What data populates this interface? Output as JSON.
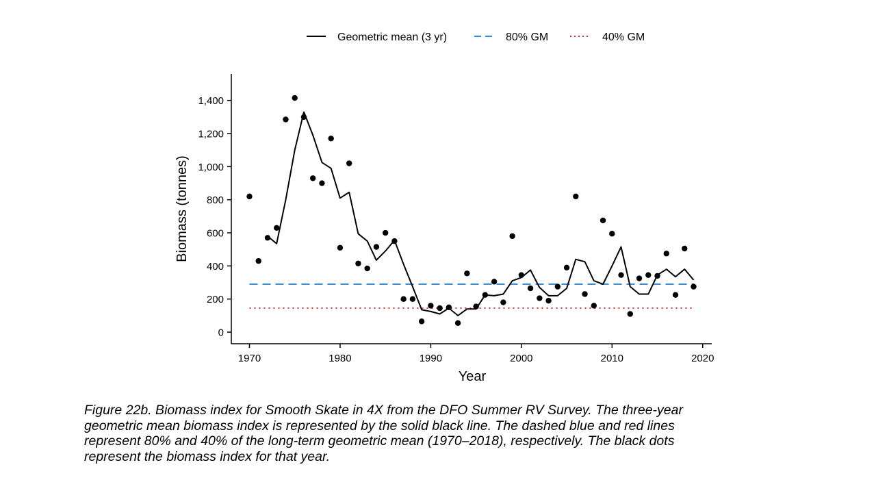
{
  "chart_data": {
    "type": "line",
    "xlabel": "Year",
    "ylabel": "Biomass (tonnes)",
    "xlim": [
      1968,
      2021
    ],
    "ylim": [
      -70,
      1560
    ],
    "x_ticks": [
      1970,
      1980,
      1990,
      2000,
      2010,
      2020
    ],
    "x_tick_labels": [
      "1970",
      "1980",
      "1990",
      "2000",
      "2010",
      "2020"
    ],
    "y_ticks": [
      0,
      200,
      400,
      600,
      800,
      1000,
      1200,
      1400
    ],
    "y_tick_labels": [
      "0",
      "200",
      "400",
      "600",
      "800",
      "1,000",
      "1,200",
      "1,400"
    ],
    "grid": false,
    "legend_position": "top",
    "legend": [
      {
        "label": "Geometric mean (3 yr)",
        "style": "solid",
        "color": "#000000"
      },
      {
        "label": "80% GM",
        "style": "dashed",
        "color": "#3b8fe0"
      },
      {
        "label": "40% GM",
        "style": "dotted",
        "color": "#d0343c"
      }
    ],
    "series": [
      {
        "name": "Geometric mean (3 yr)",
        "kind": "line",
        "color": "#000000",
        "x": [
          1972,
          1973,
          1974,
          1975,
          1976,
          1977,
          1978,
          1979,
          1980,
          1981,
          1982,
          1983,
          1984,
          1985,
          1986,
          1987,
          1988,
          1989,
          1990,
          1991,
          1992,
          1993,
          1994,
          1995,
          1996,
          1997,
          1998,
          1999,
          2000,
          2001,
          2002,
          2003,
          2004,
          2005,
          2006,
          2007,
          2008,
          2009,
          2010,
          2011,
          2012,
          2013,
          2014,
          2015,
          2016,
          2017,
          2018,
          2019
        ],
        "y": [
          580,
          535,
          800,
          1100,
          1330,
          1190,
          1025,
          990,
          810,
          845,
          595,
          550,
          435,
          490,
          555,
          410,
          275,
          135,
          125,
          110,
          145,
          100,
          140,
          140,
          225,
          220,
          230,
          310,
          330,
          375,
          270,
          220,
          220,
          265,
          440,
          425,
          310,
          290,
          400,
          515,
          275,
          230,
          230,
          345,
          380,
          335,
          380,
          315
        ]
      },
      {
        "name": "80% GM",
        "kind": "hline",
        "color": "#3b8fe0",
        "x": [
          1970,
          2019
        ],
        "y": 290
      },
      {
        "name": "40% GM",
        "kind": "hline",
        "color": "#d0343c",
        "x": [
          1970,
          2019
        ],
        "y": 145
      },
      {
        "kind": "points",
        "color": "#000000",
        "x": [
          1970,
          1971,
          1972,
          1973,
          1974,
          1975,
          1976,
          1977,
          1978,
          1979,
          1980,
          1981,
          1982,
          1983,
          1984,
          1985,
          1986,
          1987,
          1988,
          1989,
          1990,
          1991,
          1992,
          1993,
          1994,
          1995,
          1996,
          1997,
          1998,
          1999,
          2000,
          2001,
          2002,
          2003,
          2004,
          2005,
          2006,
          2007,
          2008,
          2009,
          2010,
          2011,
          2012,
          2013,
          2014,
          2015,
          2016,
          2017,
          2018,
          2019
        ],
        "y": [
          820,
          430,
          570,
          630,
          1285,
          1415,
          1300,
          930,
          900,
          1170,
          510,
          1020,
          415,
          385,
          515,
          600,
          550,
          200,
          200,
          65,
          160,
          145,
          150,
          55,
          355,
          155,
          225,
          305,
          180,
          580,
          345,
          265,
          205,
          190,
          275,
          390,
          820,
          230,
          160,
          675,
          595,
          345,
          110,
          325,
          345,
          340,
          475,
          225,
          505,
          275
        ]
      }
    ]
  },
  "caption": {
    "lines": [
      "Figure 22b. Biomass index for Smooth Skate in 4X from the DFO Summer RV Survey. The three-year",
      "geometric mean biomass index is represented by the solid black line. The dashed blue and red lines",
      "represent 80% and 40% of the long-term geometric mean (1970–2018), respectively. The black dots",
      "represent the biomass index for that year."
    ]
  }
}
